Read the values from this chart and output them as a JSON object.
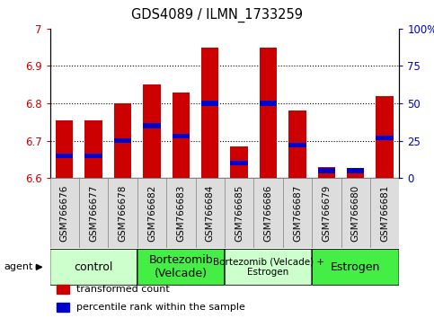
{
  "title": "GDS4089 / ILMN_1733259",
  "samples": [
    "GSM766676",
    "GSM766677",
    "GSM766678",
    "GSM766682",
    "GSM766683",
    "GSM766684",
    "GSM766685",
    "GSM766686",
    "GSM766687",
    "GSM766679",
    "GSM766680",
    "GSM766681"
  ],
  "bar_values": [
    6.755,
    6.755,
    6.8,
    6.85,
    6.83,
    6.95,
    6.685,
    6.95,
    6.78,
    6.63,
    6.625,
    6.82
  ],
  "percentile_values": [
    15,
    15,
    25,
    35,
    28,
    50,
    10,
    50,
    22,
    5,
    5,
    27
  ],
  "y_min": 6.6,
  "y_max": 7.0,
  "y_ticks": [
    6.6,
    6.7,
    6.8,
    6.9,
    7.0
  ],
  "right_y_ticks": [
    0,
    25,
    50,
    75,
    100
  ],
  "bar_color": "#CC0000",
  "percentile_color": "#0000CC",
  "groups": [
    {
      "label": "control",
      "start": 0,
      "end": 3,
      "color": "#CCFFCC",
      "label_fontsize": 9
    },
    {
      "label": "Bortezomib\n(Velcade)",
      "start": 3,
      "end": 6,
      "color": "#44EE44",
      "label_fontsize": 9
    },
    {
      "label": "Bortezomib (Velcade) +\nEstrogen",
      "start": 6,
      "end": 9,
      "color": "#CCFFCC",
      "label_fontsize": 7.5
    },
    {
      "label": "Estrogen",
      "start": 9,
      "end": 12,
      "color": "#44EE44",
      "label_fontsize": 9
    }
  ],
  "legend_items": [
    {
      "label": "transformed count",
      "color": "#CC0000"
    },
    {
      "label": "percentile rank within the sample",
      "color": "#0000CC"
    }
  ],
  "agent_label": "agent",
  "sample_fontsize": 7.5,
  "title_fontsize": 10.5,
  "tick_fontsize": 8.5,
  "legend_fontsize": 8,
  "tick_label_color_left": "#CC0000",
  "tick_label_color_right": "#0000CC",
  "grid_color": "black",
  "grid_style": ":",
  "grid_linewidth": 0.8,
  "bar_width": 0.6,
  "sample_box_color": "#DDDDDD",
  "sample_box_edgecolor": "#888888"
}
